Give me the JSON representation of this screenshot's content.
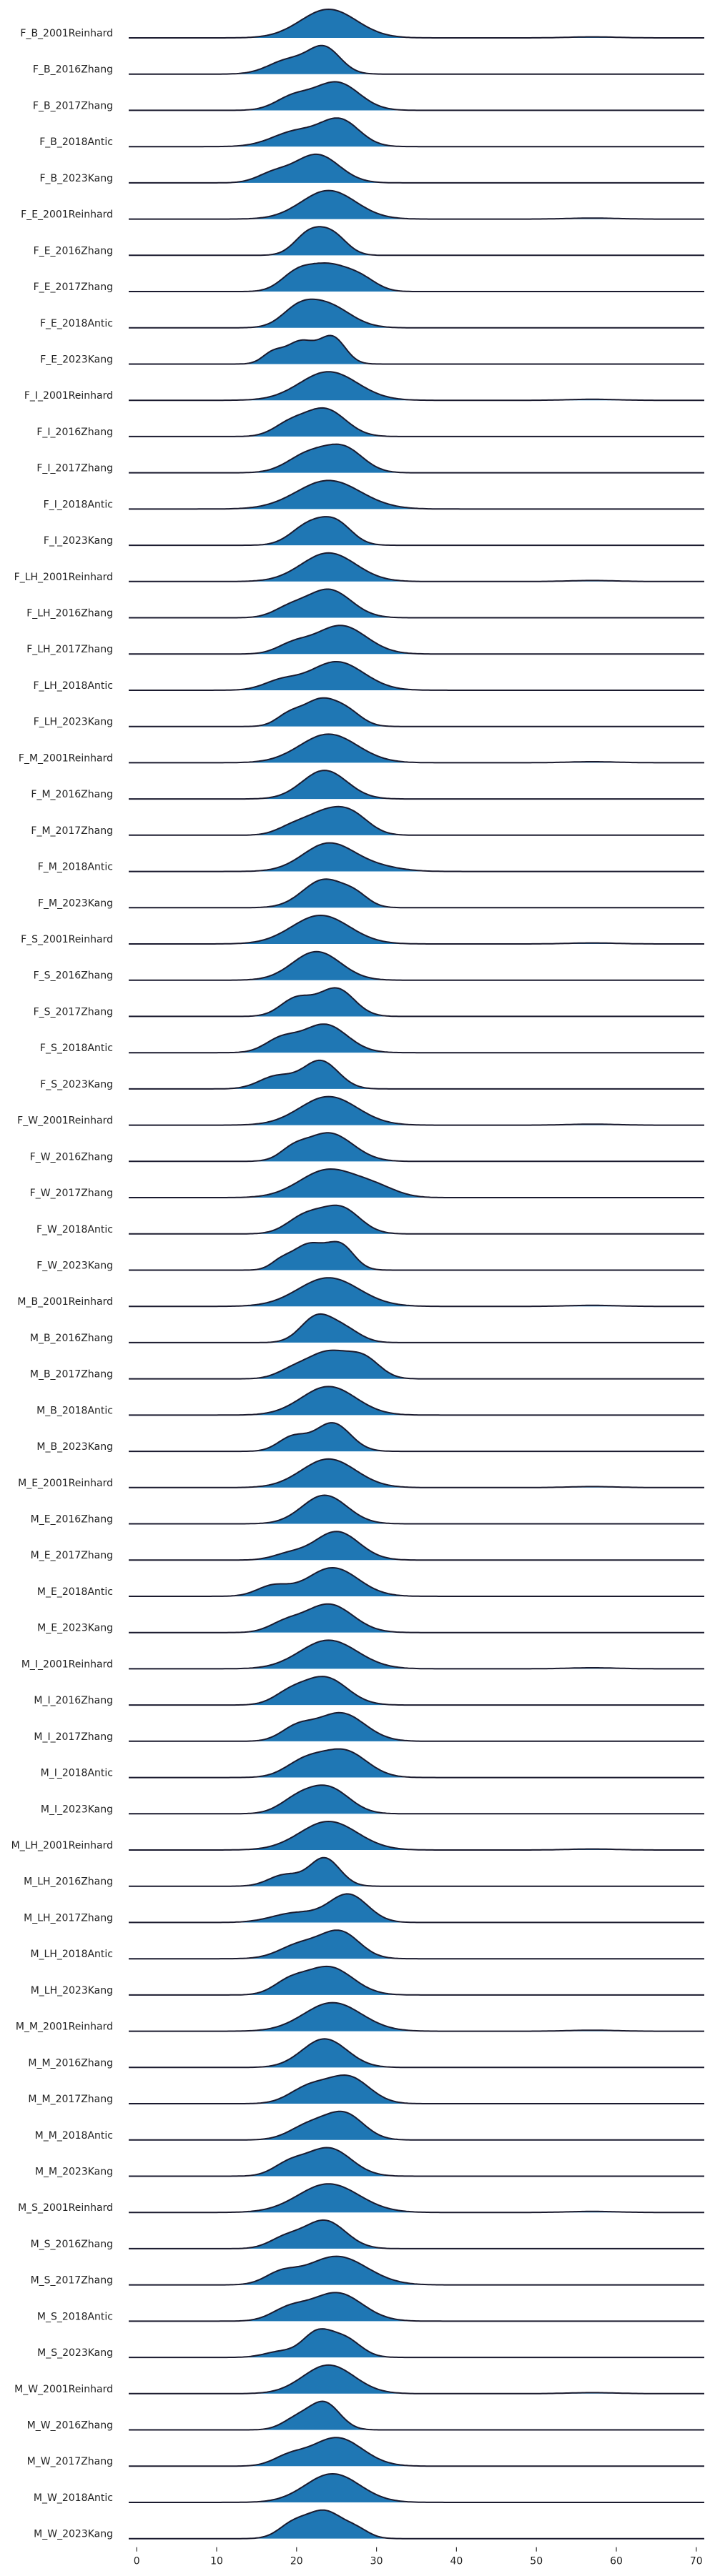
{
  "chart_data": {
    "type": "area",
    "title": "",
    "xlabel": "",
    "ylabel": "",
    "xlim": [
      -1,
      71
    ],
    "x_ticks": [
      0,
      10,
      20,
      30,
      40,
      50,
      60,
      70
    ],
    "x_tick_labels": [
      "0",
      "10",
      "20",
      "30",
      "40",
      "50",
      "60",
      "70"
    ],
    "fill_color": "#1f77b4",
    "line_color": "#1a1a2e",
    "grid": false,
    "legend": "none",
    "series": [
      {
        "name": "F_B_2001Reinhard",
        "peaks": [
          [
            24,
            3.5,
            1.0
          ]
        ],
        "tail": true
      },
      {
        "name": "F_B_2016Zhang",
        "peaks": [
          [
            23.5,
            2.0,
            1.0
          ],
          [
            19,
            2.5,
            0.55
          ]
        ],
        "tail": false
      },
      {
        "name": "F_B_2017Zhang",
        "peaks": [
          [
            25,
            2.8,
            1.0
          ],
          [
            19.5,
            2.2,
            0.45
          ]
        ],
        "tail": false
      },
      {
        "name": "F_B_2018Antic",
        "peaks": [
          [
            25.5,
            2.4,
            1.0
          ],
          [
            20,
            3.0,
            0.6
          ]
        ],
        "tail": false
      },
      {
        "name": "F_B_2023Kang",
        "peaks": [
          [
            22.5,
            2.8,
            1.0
          ],
          [
            17,
            2.0,
            0.3
          ]
        ],
        "tail": false
      },
      {
        "name": "F_E_2001Reinhard",
        "peaks": [
          [
            24,
            3.4,
            1.0
          ]
        ],
        "tail": true
      },
      {
        "name": "F_E_2016Zhang",
        "peaks": [
          [
            21.5,
            1.8,
            1.0
          ],
          [
            24.5,
            1.8,
            0.95
          ]
        ],
        "tail": false
      },
      {
        "name": "F_E_2017Zhang",
        "peaks": [
          [
            24,
            2.4,
            1.0
          ],
          [
            20,
            2.0,
            0.7
          ],
          [
            28,
            2.0,
            0.5
          ]
        ],
        "tail": false
      },
      {
        "name": "F_E_2018Antic",
        "peaks": [
          [
            23.5,
            3.0,
            1.0
          ],
          [
            20,
            2.0,
            0.5
          ]
        ],
        "tail": false
      },
      {
        "name": "F_E_2023Kang",
        "peaks": [
          [
            20.5,
            1.8,
            0.85
          ],
          [
            24.5,
            1.6,
            1.0
          ],
          [
            17,
            1.3,
            0.4
          ]
        ],
        "tail": false
      },
      {
        "name": "F_I_2001Reinhard",
        "peaks": [
          [
            24,
            3.6,
            1.0
          ]
        ],
        "tail": true
      },
      {
        "name": "F_I_2016Zhang",
        "peaks": [
          [
            23.5,
            2.6,
            1.0
          ],
          [
            19,
            2.0,
            0.4
          ]
        ],
        "tail": false
      },
      {
        "name": "F_I_2017Zhang",
        "peaks": [
          [
            26,
            2.4,
            1.0
          ],
          [
            21.5,
            2.6,
            0.8
          ]
        ],
        "tail": false
      },
      {
        "name": "F_I_2018Antic",
        "peaks": [
          [
            24,
            4.0,
            1.0
          ]
        ],
        "tail": false
      },
      {
        "name": "F_I_2023Kang",
        "peaks": [
          [
            21.5,
            2.2,
            0.95
          ],
          [
            25,
            2.0,
            1.0
          ]
        ],
        "tail": false
      },
      {
        "name": "F_LH_2001Reinhard",
        "peaks": [
          [
            24,
            3.4,
            1.0
          ]
        ],
        "tail": true
      },
      {
        "name": "F_LH_2016Zhang",
        "peaks": [
          [
            24,
            2.8,
            1.0
          ],
          [
            19,
            2.0,
            0.3
          ]
        ],
        "tail": false
      },
      {
        "name": "F_LH_2017Zhang",
        "peaks": [
          [
            25.5,
            3.2,
            1.0
          ],
          [
            19.5,
            2.0,
            0.3
          ]
        ],
        "tail": false
      },
      {
        "name": "F_LH_2018Antic",
        "peaks": [
          [
            25,
            3.4,
            1.0
          ],
          [
            18,
            2.2,
            0.3
          ]
        ],
        "tail": false
      },
      {
        "name": "F_LH_2023Kang",
        "peaks": [
          [
            23,
            2.2,
            1.0
          ],
          [
            19,
            1.6,
            0.4
          ],
          [
            26.5,
            1.8,
            0.45
          ]
        ],
        "tail": false
      },
      {
        "name": "F_M_2001Reinhard",
        "peaks": [
          [
            24,
            3.6,
            1.0
          ]
        ],
        "tail": true
      },
      {
        "name": "F_M_2016Zhang",
        "peaks": [
          [
            23.5,
            2.8,
            1.0
          ]
        ],
        "tail": false
      },
      {
        "name": "F_M_2017Zhang",
        "peaks": [
          [
            23.5,
            2.4,
            1.0
          ],
          [
            27,
            2.2,
            0.9
          ],
          [
            19.5,
            2.0,
            0.4
          ]
        ],
        "tail": false
      },
      {
        "name": "F_M_2018Antic",
        "peaks": [
          [
            24,
            3.2,
            1.0
          ],
          [
            30,
            3.0,
            0.15
          ]
        ],
        "tail": false
      },
      {
        "name": "F_M_2023Kang",
        "peaks": [
          [
            23.5,
            2.7,
            1.0
          ],
          [
            27.5,
            1.6,
            0.3
          ]
        ],
        "tail": false
      },
      {
        "name": "F_S_2001Reinhard",
        "peaks": [
          [
            23,
            3.6,
            1.0
          ]
        ],
        "tail": true
      },
      {
        "name": "F_S_2016Zhang",
        "peaks": [
          [
            22.5,
            3.0,
            1.0
          ]
        ],
        "tail": false
      },
      {
        "name": "F_S_2017Zhang",
        "peaks": [
          [
            25,
            2.2,
            1.0
          ],
          [
            20,
            2.0,
            0.65
          ]
        ],
        "tail": false
      },
      {
        "name": "F_S_2018Antic",
        "peaks": [
          [
            23.5,
            2.8,
            1.0
          ],
          [
            18,
            2.0,
            0.45
          ]
        ],
        "tail": false
      },
      {
        "name": "F_S_2023Kang",
        "peaks": [
          [
            23,
            2.2,
            1.0
          ],
          [
            17.5,
            2.2,
            0.45
          ]
        ],
        "tail": false
      },
      {
        "name": "F_W_2001Reinhard",
        "peaks": [
          [
            24,
            3.6,
            1.0
          ]
        ],
        "tail": true
      },
      {
        "name": "F_W_2016Zhang",
        "peaks": [
          [
            24,
            3.0,
            1.0
          ],
          [
            19.5,
            1.6,
            0.3
          ]
        ],
        "tail": false
      },
      {
        "name": "F_W_2017Zhang",
        "peaks": [
          [
            24,
            3.6,
            1.0
          ],
          [
            30,
            2.6,
            0.3
          ]
        ],
        "tail": false
      },
      {
        "name": "F_W_2018Antic",
        "peaks": [
          [
            25.5,
            2.4,
            1.0
          ],
          [
            21,
            2.2,
            0.65
          ]
        ],
        "tail": false
      },
      {
        "name": "F_W_2023Kang",
        "peaks": [
          [
            21.5,
            2.0,
            1.0
          ],
          [
            25.5,
            1.7,
            0.95
          ],
          [
            18,
            1.3,
            0.3
          ]
        ],
        "tail": false
      },
      {
        "name": "M_B_2001Reinhard",
        "peaks": [
          [
            24,
            3.8,
            1.0
          ]
        ],
        "tail": true
      },
      {
        "name": "M_B_2016Zhang",
        "peaks": [
          [
            22.5,
            2.0,
            1.0
          ],
          [
            26,
            2.0,
            0.5
          ]
        ],
        "tail": false
      },
      {
        "name": "M_B_2017Zhang",
        "peaks": [
          [
            24,
            2.6,
            1.0
          ],
          [
            28.5,
            2.0,
            0.7
          ],
          [
            19.5,
            2.0,
            0.3
          ]
        ],
        "tail": false
      },
      {
        "name": "M_B_2018Antic",
        "peaks": [
          [
            24,
            3.4,
            1.0
          ]
        ],
        "tail": false
      },
      {
        "name": "M_B_2023Kang",
        "peaks": [
          [
            24.5,
            2.2,
            1.0
          ],
          [
            19.5,
            1.8,
            0.5
          ]
        ],
        "tail": false
      },
      {
        "name": "M_E_2001Reinhard",
        "peaks": [
          [
            24,
            3.4,
            1.0
          ]
        ],
        "tail": true
      },
      {
        "name": "M_E_2016Zhang",
        "peaks": [
          [
            23.5,
            2.8,
            1.0
          ]
        ],
        "tail": false
      },
      {
        "name": "M_E_2017Zhang",
        "peaks": [
          [
            25,
            2.8,
            1.0
          ],
          [
            19,
            2.0,
            0.2
          ]
        ],
        "tail": false
      },
      {
        "name": "M_E_2018Antic",
        "peaks": [
          [
            24.5,
            3.2,
            1.0
          ],
          [
            17,
            2.0,
            0.35
          ]
        ],
        "tail": false
      },
      {
        "name": "M_E_2023Kang",
        "peaks": [
          [
            24,
            3.0,
            1.0
          ],
          [
            18.5,
            2.0,
            0.3
          ]
        ],
        "tail": false
      },
      {
        "name": "M_I_2001Reinhard",
        "peaks": [
          [
            24,
            3.6,
            1.0
          ]
        ],
        "tail": true
      },
      {
        "name": "M_I_2016Zhang",
        "peaks": [
          [
            23.5,
            2.8,
            1.0
          ],
          [
            19,
            2.0,
            0.35
          ]
        ],
        "tail": false
      },
      {
        "name": "M_I_2017Zhang",
        "peaks": [
          [
            25.5,
            3.0,
            1.0
          ],
          [
            20,
            2.0,
            0.45
          ]
        ],
        "tail": false
      },
      {
        "name": "M_I_2018Antic",
        "peaks": [
          [
            26,
            2.8,
            1.0
          ],
          [
            21,
            2.4,
            0.6
          ]
        ],
        "tail": false
      },
      {
        "name": "M_I_2023Kang",
        "peaks": [
          [
            24,
            2.6,
            1.0
          ],
          [
            20,
            2.2,
            0.5
          ]
        ],
        "tail": false
      },
      {
        "name": "M_LH_2001Reinhard",
        "peaks": [
          [
            24,
            3.6,
            1.0
          ]
        ],
        "tail": true
      },
      {
        "name": "M_LH_2016Zhang",
        "peaks": [
          [
            23.5,
            1.9,
            1.0
          ],
          [
            18.5,
            2.0,
            0.4
          ]
        ],
        "tail": false
      },
      {
        "name": "M_LH_2017Zhang",
        "peaks": [
          [
            26.5,
            2.4,
            1.0
          ],
          [
            20,
            3.0,
            0.35
          ]
        ],
        "tail": false
      },
      {
        "name": "M_LH_2018Antic",
        "peaks": [
          [
            25.5,
            2.4,
            1.0
          ],
          [
            20.5,
            2.6,
            0.55
          ]
        ],
        "tail": false
      },
      {
        "name": "M_LH_2023Kang",
        "peaks": [
          [
            24,
            3.0,
            1.0
          ],
          [
            19,
            2.0,
            0.4
          ]
        ],
        "tail": false
      },
      {
        "name": "M_M_2001Reinhard",
        "peaks": [
          [
            24.5,
            3.6,
            1.0
          ]
        ],
        "tail": true
      },
      {
        "name": "M_M_2016Zhang",
        "peaks": [
          [
            23.5,
            2.8,
            1.0
          ]
        ],
        "tail": false
      },
      {
        "name": "M_M_2017Zhang",
        "peaks": [
          [
            26.5,
            2.6,
            1.0
          ],
          [
            21.5,
            2.4,
            0.6
          ]
        ],
        "tail": false
      },
      {
        "name": "M_M_2018Antic",
        "peaks": [
          [
            26,
            2.4,
            1.0
          ],
          [
            21.5,
            2.4,
            0.55
          ]
        ],
        "tail": false
      },
      {
        "name": "M_M_2023Kang",
        "peaks": [
          [
            24,
            2.8,
            1.0
          ],
          [
            19,
            2.0,
            0.4
          ]
        ],
        "tail": false
      },
      {
        "name": "M_S_2001Reinhard",
        "peaks": [
          [
            24,
            3.8,
            1.0
          ]
        ],
        "tail": true
      },
      {
        "name": "M_S_2016Zhang",
        "peaks": [
          [
            23.5,
            2.6,
            1.0
          ],
          [
            18.5,
            2.0,
            0.35
          ]
        ],
        "tail": false
      },
      {
        "name": "M_S_2017Zhang",
        "peaks": [
          [
            25,
            3.8,
            1.0
          ],
          [
            18,
            2.0,
            0.35
          ]
        ],
        "tail": false
      },
      {
        "name": "M_S_2018Antic",
        "peaks": [
          [
            25,
            3.2,
            1.0
          ],
          [
            19,
            2.2,
            0.4
          ]
        ],
        "tail": false
      },
      {
        "name": "M_S_2023Kang",
        "peaks": [
          [
            22.5,
            1.8,
            1.0
          ],
          [
            26,
            2.0,
            0.8
          ],
          [
            18,
            2.0,
            0.25
          ]
        ],
        "tail": false
      },
      {
        "name": "M_W_2001Reinhard",
        "peaks": [
          [
            24,
            3.2,
            1.0
          ]
        ],
        "tail": true
      },
      {
        "name": "M_W_2016Zhang",
        "peaks": [
          [
            23.5,
            1.9,
            1.0
          ],
          [
            20,
            1.8,
            0.4
          ]
        ],
        "tail": false
      },
      {
        "name": "M_W_2017Zhang",
        "peaks": [
          [
            25,
            3.2,
            1.0
          ],
          [
            19,
            2.0,
            0.3
          ]
        ],
        "tail": false
      },
      {
        "name": "M_W_2018Antic",
        "peaks": [
          [
            24.5,
            3.4,
            1.0
          ]
        ],
        "tail": false
      },
      {
        "name": "M_W_2023Kang",
        "peaks": [
          [
            23.5,
            2.2,
            1.0
          ],
          [
            19.5,
            1.8,
            0.5
          ],
          [
            27.5,
            1.6,
            0.3
          ]
        ],
        "tail": false
      }
    ]
  }
}
